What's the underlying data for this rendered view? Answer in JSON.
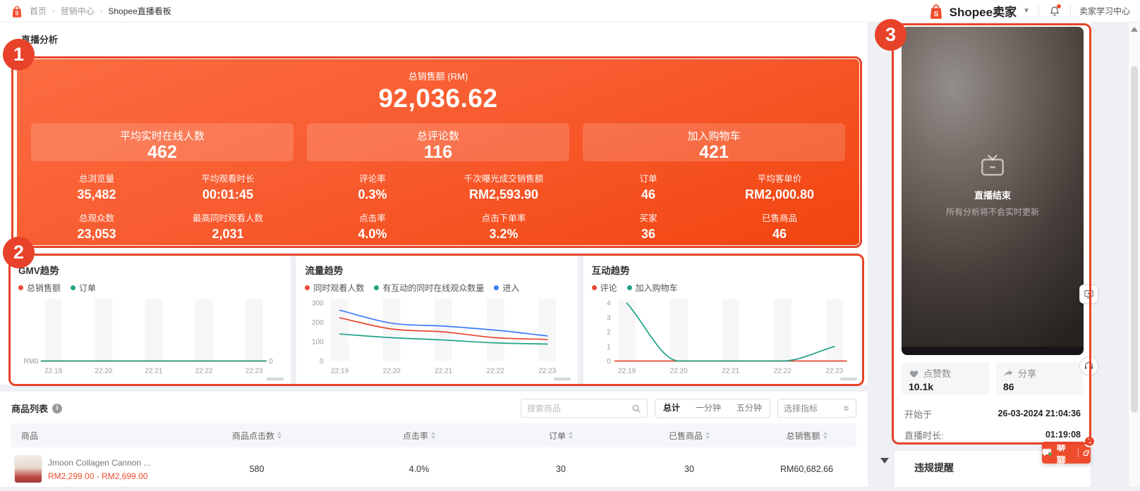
{
  "colors": {
    "accent": "#ee4d2d",
    "annotation": "#e8432a",
    "chart_red": "#e8472f",
    "chart_teal": "#1fa287",
    "chart_blue": "#3e7bfa"
  },
  "topbar": {
    "breadcrumb": [
      "首页",
      "营销中心",
      "Shopee直播看板"
    ],
    "brand": "Shopee卖家",
    "learn_center": "卖家学习中心"
  },
  "page_title": "直播分析",
  "overview": {
    "gmv_label": "总销售额 (RM)",
    "gmv_value": "92,036.62",
    "cards": [
      {
        "label": "平均实时在线人数",
        "value": "462"
      },
      {
        "label": "总评论数",
        "value": "116"
      },
      {
        "label": "加入购物车",
        "value": "421"
      }
    ],
    "stats": [
      [
        {
          "label": "总浏览量",
          "value": "35,482"
        },
        {
          "label": "平均观看时长",
          "value": "00:01:45"
        },
        {
          "label": "总观众数",
          "value": "23,053"
        },
        {
          "label": "最高同时观看人数",
          "value": "2,031"
        }
      ],
      [
        {
          "label": "评论率",
          "value": "0.3%"
        },
        {
          "label": "千次曝光成交销售额",
          "value": "RM2,593.90"
        },
        {
          "label": "点击率",
          "value": "4.0%"
        },
        {
          "label": "点击下单率",
          "value": "3.2%"
        }
      ],
      [
        {
          "label": "订单",
          "value": "46"
        },
        {
          "label": "平均客单价",
          "value": "RM2,000.80"
        },
        {
          "label": "买家",
          "value": "36"
        },
        {
          "label": "已售商品",
          "value": "46"
        }
      ]
    ]
  },
  "chart_data": [
    {
      "type": "line",
      "title": "GMV趋势",
      "categories": [
        "22:19",
        "22:20",
        "22:21",
        "22:22",
        "22:23"
      ],
      "series": [
        {
          "name": "总销售额",
          "color": "#e8472f",
          "values": [
            0,
            0,
            0,
            0,
            0
          ]
        },
        {
          "name": "订单",
          "color": "#1fa287",
          "values": [
            0,
            0,
            0,
            0,
            0
          ]
        }
      ],
      "y_left_label": "RM0",
      "y_right_label": "0",
      "ylim": [
        0,
        1
      ],
      "grid": false,
      "legend_position": "top"
    },
    {
      "type": "line",
      "title": "流量趋势",
      "categories": [
        "22:19",
        "22:20",
        "22:21",
        "22:22",
        "22:23"
      ],
      "series": [
        {
          "name": "同时观看人数",
          "color": "#e8472f",
          "values": [
            224,
            166,
            151,
            121,
            112
          ]
        },
        {
          "name": "有互动的同时在线观众数量",
          "color": "#1fa287",
          "values": [
            140,
            121,
            109,
            94,
            88
          ]
        },
        {
          "name": "进入",
          "color": "#3e7bfa",
          "values": [
            263,
            196,
            181,
            160,
            130
          ]
        }
      ],
      "yticks": [
        0,
        100,
        200,
        300
      ],
      "ylim": [
        0,
        300
      ],
      "grid": false,
      "legend_position": "top"
    },
    {
      "type": "line",
      "title": "互动趋势",
      "categories": [
        "22:19",
        "22:20",
        "22:21",
        "22:22",
        "22:23"
      ],
      "series": [
        {
          "name": "评论",
          "color": "#e8472f",
          "values": [
            0,
            0,
            0,
            0,
            0
          ]
        },
        {
          "name": "加入购物车",
          "color": "#1fa287",
          "values": [
            4,
            0,
            0,
            0,
            1
          ]
        }
      ],
      "yticks": [
        0,
        1,
        2,
        3,
        4
      ],
      "ylim": [
        0,
        4
      ],
      "grid": false,
      "legend_position": "top"
    }
  ],
  "product_list": {
    "title": "商品列表",
    "search_placeholder": "搜索商品",
    "segments": [
      "总计",
      "一分钟",
      "五分钟"
    ],
    "selected_segment": "总计",
    "metric_select": "选择指标",
    "columns": [
      "商品",
      "商品点击数",
      "点击率",
      "订单",
      "已售商品",
      "总销售额"
    ],
    "rows": [
      {
        "name": "Jmoon Collagen Cannon ...",
        "price": "RM2,299.00 - RM2,699.00",
        "clicks": "580",
        "ctr": "4.0%",
        "orders": "30",
        "sold": "30",
        "sales": "RM60,682.66"
      }
    ]
  },
  "sidebar": {
    "ended_title": "直播结束",
    "ended_desc": "所有分析将不会实时更新",
    "likes_label": "点赞数",
    "likes_value": "10.1k",
    "shares_label": "分享",
    "shares_value": "86",
    "started_label": "开始于",
    "started_value": "26-03-2024 21:04:36",
    "duration_label": "直播时长:",
    "duration_value": "01:19:08",
    "violation_title": "违规提醒"
  },
  "chat": {
    "label": "聊聊",
    "badge": "2"
  },
  "annotations": {
    "labels": [
      "1",
      "2",
      "3"
    ]
  }
}
